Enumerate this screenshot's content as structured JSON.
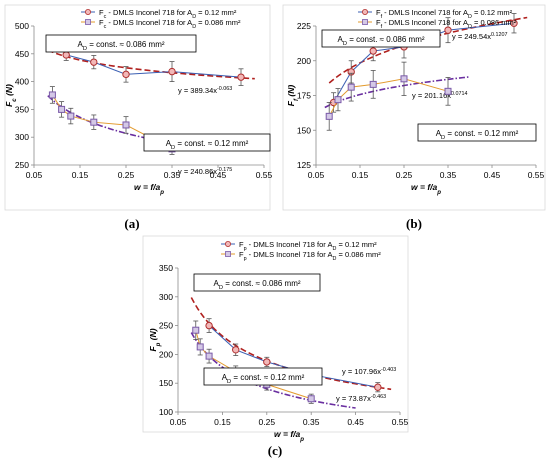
{
  "chart_data": [
    {
      "type": "scatter",
      "panel_label": "(a)",
      "xlabel": "w = f/a_p",
      "ylabel": "F_c (N)",
      "xlim": [
        0.05,
        0.55
      ],
      "ylim": [
        250,
        500
      ],
      "xticks": [
        "0.05",
        "0.15",
        "0.25",
        "0.35",
        "0.45",
        "0.55"
      ],
      "yticks": [
        "250",
        "300",
        "350",
        "400",
        "450",
        "500"
      ],
      "legend_placement": "top",
      "series": [
        {
          "name": "F_c - DMLS Inconel 718 for A_D = 0.12 mm²",
          "marker": "circle",
          "color": "#3b5fb3",
          "fill": "#f2b8b8",
          "x": [
            0.12,
            0.18,
            0.25,
            0.35,
            0.5
          ],
          "y": [
            448,
            435,
            413,
            418,
            408
          ],
          "err": [
            10,
            12,
            14,
            18,
            15
          ]
        },
        {
          "name": "F_c - DMLS Inconel 718 for A_D = 0.086 mm²",
          "marker": "square",
          "color": "#e39b2e",
          "fill": "#d4c8e6",
          "x": [
            0.09,
            0.11,
            0.13,
            0.18,
            0.25,
            0.35
          ],
          "y": [
            376,
            350,
            338,
            327,
            322,
            279
          ],
          "err": [
            15,
            14,
            14,
            13,
            15,
            10
          ]
        }
      ],
      "fits": [
        {
          "label": "y = 389.34x^-0.063",
          "a": 389.34,
          "b": -0.063,
          "x0": 0.08,
          "x1": 0.53,
          "color": "#b0201e",
          "dash": "6,3"
        },
        {
          "label": "y = 240.86x^-0.175",
          "a": 240.86,
          "b": -0.175,
          "x0": 0.08,
          "x1": 0.45,
          "color": "#6a2fa0",
          "dash": "6,2,1.5,2"
        }
      ],
      "annotations": [
        "A_D = const. ≈ 0.086 mm²",
        "A_D = const. ≈ 0.12 mm²"
      ]
    },
    {
      "type": "scatter",
      "panel_label": "(b)",
      "xlabel": "w = f/a_p",
      "ylabel": "F_f (N)",
      "xlim": [
        0.05,
        0.55
      ],
      "ylim": [
        125,
        225
      ],
      "xticks": [
        "0.05",
        "0.15",
        "0.25",
        "0.35",
        "0.45",
        "0.55"
      ],
      "yticks": [
        "125",
        "150",
        "175",
        "200",
        "225"
      ],
      "legend_placement": "top",
      "series": [
        {
          "name": "F_f - DMLS Inconel 718 for A_D = 0.12 mm²",
          "marker": "circle",
          "color": "#3b5fb3",
          "fill": "#f2b8b8",
          "x": [
            0.09,
            0.13,
            0.18,
            0.25,
            0.35,
            0.5
          ],
          "y": [
            170,
            192,
            207,
            210,
            222,
            227
          ],
          "err": [
            7,
            8,
            7,
            8,
            9,
            7
          ]
        },
        {
          "name": "F_f - DMLS Inconel 718 for A_D = 0.086 mm²",
          "marker": "square",
          "color": "#e39b2e",
          "fill": "#d4c8e6",
          "x": [
            0.08,
            0.1,
            0.13,
            0.18,
            0.25,
            0.35
          ],
          "y": [
            160,
            172,
            181,
            183,
            187,
            178
          ],
          "err": [
            10,
            8,
            10,
            10,
            12,
            10
          ]
        }
      ],
      "fits": [
        {
          "label": "y = 249.54x^0.1207",
          "a": 249.54,
          "b": 0.1207,
          "x0": 0.08,
          "x1": 0.53,
          "color": "#b0201e",
          "dash": "6,3"
        },
        {
          "label": "y = 201.16x^0.0714",
          "a": 201.16,
          "b": 0.0714,
          "x0": 0.07,
          "x1": 0.4,
          "color": "#6a2fa0",
          "dash": "6,2,1.5,2"
        }
      ],
      "annotations": [
        "A_D = const. ≈ 0.086 mm²",
        "A_D = const. ≈ 0.12 mm²"
      ]
    },
    {
      "type": "scatter",
      "panel_label": "(c)",
      "xlabel": "w = f/a_p",
      "ylabel": "F_p (N)",
      "xlim": [
        0.05,
        0.55
      ],
      "ylim": [
        100,
        350
      ],
      "xticks": [
        "0.05",
        "0.15",
        "0.25",
        "0.35",
        "0.45",
        "0.55"
      ],
      "yticks": [
        "100",
        "150",
        "200",
        "250",
        "300",
        "350"
      ],
      "legend_placement": "top",
      "series": [
        {
          "name": "F_p - DMLS Inconel 718 for A_D = 0.12 mm²",
          "marker": "circle",
          "color": "#3b5fb3",
          "fill": "#f2b8b8",
          "x": [
            0.12,
            0.18,
            0.25,
            0.35,
            0.5
          ],
          "y": [
            250,
            208,
            187,
            165,
            143
          ],
          "err": [
            12,
            10,
            8,
            8,
            8
          ]
        },
        {
          "name": "F_p - DMLS Inconel 718 for A_D = 0.086 mm²",
          "marker": "square",
          "color": "#e39b2e",
          "fill": "#d4c8e6",
          "x": [
            0.09,
            0.1,
            0.12,
            0.18,
            0.25,
            0.35
          ],
          "y": [
            242,
            213,
            197,
            170,
            148,
            123
          ],
          "err": [
            16,
            14,
            12,
            10,
            10,
            8
          ]
        }
      ],
      "fits": [
        {
          "label": "y = 107.96x^-0.403",
          "a": 107.96,
          "b": -0.403,
          "x0": 0.08,
          "x1": 0.53,
          "color": "#b0201e",
          "dash": "6,3"
        },
        {
          "label": "y = 73.87x^-0.463",
          "a": 73.87,
          "b": -0.463,
          "x0": 0.08,
          "x1": 0.45,
          "color": "#6a2fa0",
          "dash": "6,2,1.5,2"
        }
      ],
      "annotations": [
        "A_D = const. ≈ 0.086 mm²",
        "A_D = const. ≈ 0.12 mm²"
      ]
    }
  ]
}
